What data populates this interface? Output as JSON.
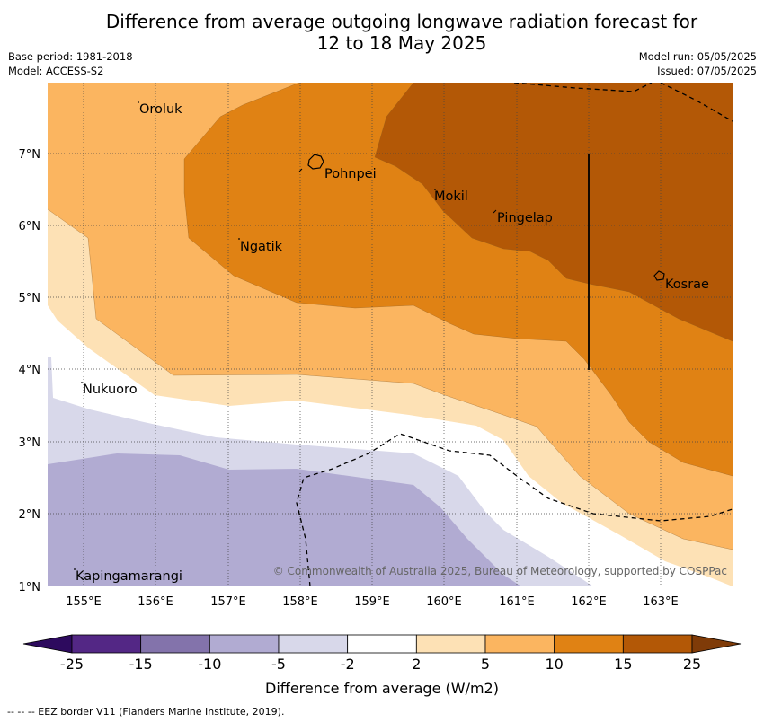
{
  "title_line1": "Difference from average outgoing longwave radiation forecast for",
  "title_line2": "12 to 18 May 2025",
  "base_period": "Base period: 1981-2018",
  "model": "Model: ACCESS-S2",
  "model_run": "Model run: 05/05/2025",
  "issued": "Issued: 07/05/2025",
  "copyright": "© Commonwealth of Australia 2025, Bureau of Meteorology, supported by COSPPac",
  "caption": "--  --  -- EEZ border V11 (Flanders Marine Institute, 2019).",
  "colorbar": {
    "label": "Difference from average (W/m2)",
    "ticks": [
      "-25",
      "-15",
      "-10",
      "-5",
      "-2",
      "2",
      "5",
      "10",
      "15",
      "25"
    ],
    "colors": [
      "#2d0a5e",
      "#532785",
      "#8373ab",
      "#b1abd2",
      "#d8d8ea",
      "#ffffff",
      "#fde1b5",
      "#fbb560",
      "#e08214",
      "#b35806",
      "#7f3b08"
    ]
  },
  "axes": {
    "lon_labels": [
      "155°E",
      "156°E",
      "157°E",
      "158°E",
      "159°E",
      "160°E",
      "161°E",
      "162°E",
      "163°E"
    ],
    "lat_labels": [
      "7°N",
      "6°N",
      "5°N",
      "4°N",
      "3°N",
      "2°N",
      "1°N"
    ]
  },
  "places": {
    "oroluk": "Oroluk",
    "pohnpei": "Pohnpei",
    "mokil": "Mokil",
    "pingelap": "Pingelap",
    "ngatik": "Ngatik",
    "kosrae": "Kosrae",
    "nukuoro": "Nukuoro",
    "kapingamarangi": "Kapingamarangi"
  }
}
